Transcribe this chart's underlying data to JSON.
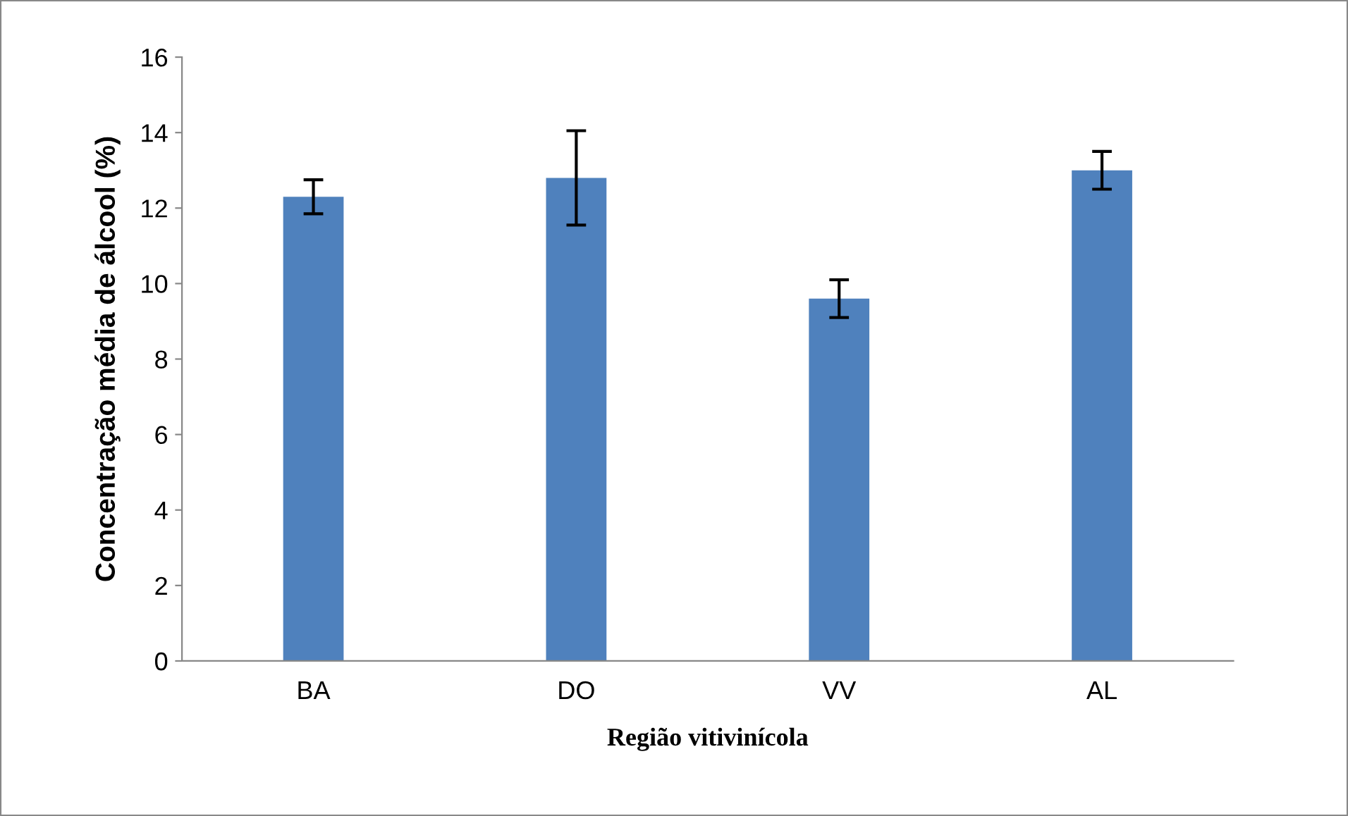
{
  "chart_data": {
    "type": "bar",
    "xlabel": "Região vitivinícola",
    "ylabel": "Concentração média de álcool (%)",
    "categories": [
      "BA",
      "DO",
      "VV",
      "AL"
    ],
    "values": [
      12.3,
      12.8,
      9.6,
      13.0
    ],
    "errors": [
      0.45,
      1.25,
      0.5,
      0.5
    ],
    "color": "#4f81bd",
    "ylim": [
      0,
      16
    ],
    "yticks": [
      0,
      2,
      4,
      6,
      8,
      10,
      12,
      14,
      16
    ],
    "grid": false,
    "legend": false
  }
}
